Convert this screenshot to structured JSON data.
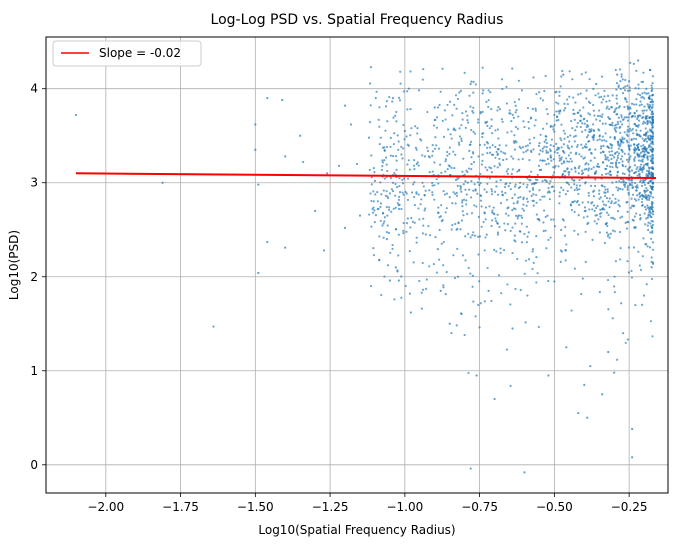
{
  "chart_data": {
    "type": "scatter",
    "title": "Log-Log PSD vs. Spatial Frequency Radius",
    "xlabel": "Log10(Spatial Frequency Radius)",
    "ylabel": "Log10(PSD)",
    "xlim": [
      -2.2,
      -0.12
    ],
    "ylim": [
      -0.3,
      4.55
    ],
    "xticks": [
      -2.0,
      -1.75,
      -1.5,
      -1.25,
      -1.0,
      -0.75,
      -0.5,
      -0.25
    ],
    "xtick_labels": [
      "−2.00",
      "−1.75",
      "−1.50",
      "−1.25",
      "−1.00",
      "−0.75",
      "−0.50",
      "−0.25"
    ],
    "yticks": [
      0,
      1,
      2,
      3,
      4
    ],
    "ytick_labels": [
      "0",
      "1",
      "2",
      "3",
      "4"
    ],
    "grid": true,
    "legend_position": "top-left",
    "scatter_color": "#1f77b4",
    "scatter_point_count_approx": 2000,
    "scatter_points": [
      [
        -2.1,
        3.72
      ],
      [
        -1.81,
        3.0
      ],
      [
        -1.64,
        1.47
      ],
      [
        -1.5,
        3.62
      ],
      [
        -1.5,
        3.35
      ],
      [
        -1.49,
        2.98
      ],
      [
        -1.49,
        2.04
      ],
      [
        -1.46,
        3.9
      ],
      [
        -1.46,
        2.37
      ],
      [
        -1.41,
        3.88
      ],
      [
        -1.4,
        3.28
      ],
      [
        -1.4,
        2.31
      ],
      [
        -1.35,
        3.5
      ],
      [
        -1.34,
        3.22
      ],
      [
        -1.3,
        2.7
      ],
      [
        -1.27,
        2.28
      ],
      [
        -1.26,
        3.1
      ],
      [
        -1.22,
        3.18
      ],
      [
        -1.2,
        3.82
      ],
      [
        -1.2,
        2.52
      ],
      [
        -1.18,
        3.62
      ],
      [
        -1.16,
        3.2
      ],
      [
        -1.15,
        2.65
      ],
      [
        -1.12,
        3.48
      ],
      [
        -1.1,
        3.02
      ],
      [
        -1.08,
        2.78
      ],
      [
        -1.06,
        2.4
      ],
      [
        -1.05,
        1.96
      ],
      [
        -1.04,
        3.9
      ],
      [
        -1.03,
        2.1
      ],
      [
        -1.02,
        1.96
      ],
      [
        -1.0,
        3.55
      ],
      [
        -0.99,
        2.62
      ],
      [
        -0.98,
        1.62
      ],
      [
        -0.96,
        3.2
      ],
      [
        -0.93,
        2.45
      ],
      [
        -0.9,
        3.8
      ],
      [
        -0.88,
        1.85
      ],
      [
        -0.86,
        2.05
      ],
      [
        -0.85,
        1.5
      ],
      [
        -0.83,
        2.78
      ],
      [
        -0.8,
        1.38
      ],
      [
        -0.78,
        4.05
      ],
      [
        -0.78,
        -0.04
      ],
      [
        -0.76,
        0.95
      ],
      [
        -0.74,
        3.95
      ],
      [
        -0.72,
        1.85
      ],
      [
        -0.7,
        0.7
      ],
      [
        -0.68,
        2.3
      ],
      [
        -0.66,
        4.02
      ],
      [
        -0.64,
        1.45
      ],
      [
        -0.6,
        -0.08
      ],
      [
        -0.59,
        1.8
      ],
      [
        -0.57,
        4.12
      ],
      [
        -0.55,
        2.6
      ],
      [
        -0.52,
        0.95
      ],
      [
        -0.5,
        1.95
      ],
      [
        -0.47,
        4.15
      ],
      [
        -0.46,
        1.25
      ],
      [
        -0.44,
        4.1
      ],
      [
        -0.42,
        0.55
      ],
      [
        -0.4,
        0.85
      ],
      [
        -0.39,
        0.5
      ],
      [
        -0.38,
        1.05
      ],
      [
        -0.36,
        4.05
      ],
      [
        -0.34,
        0.75
      ],
      [
        -0.32,
        1.2
      ],
      [
        -0.3,
        0.98
      ],
      [
        -0.29,
        4.15
      ],
      [
        -0.27,
        1.4
      ],
      [
        -0.25,
        4.08
      ],
      [
        -0.24,
        0.38
      ],
      [
        -0.24,
        0.08
      ],
      [
        -0.22,
        4.3
      ],
      [
        -0.2,
        1.8
      ],
      [
        -0.19,
        3.2
      ],
      [
        -0.18,
        4.2
      ],
      [
        -0.17,
        2.15
      ]
    ],
    "series": [
      {
        "name": "Slope = -0.02",
        "type": "line",
        "color": "#ff0000",
        "x": [
          -2.1,
          -0.16
        ],
        "y": [
          3.1,
          3.05
        ]
      }
    ]
  }
}
